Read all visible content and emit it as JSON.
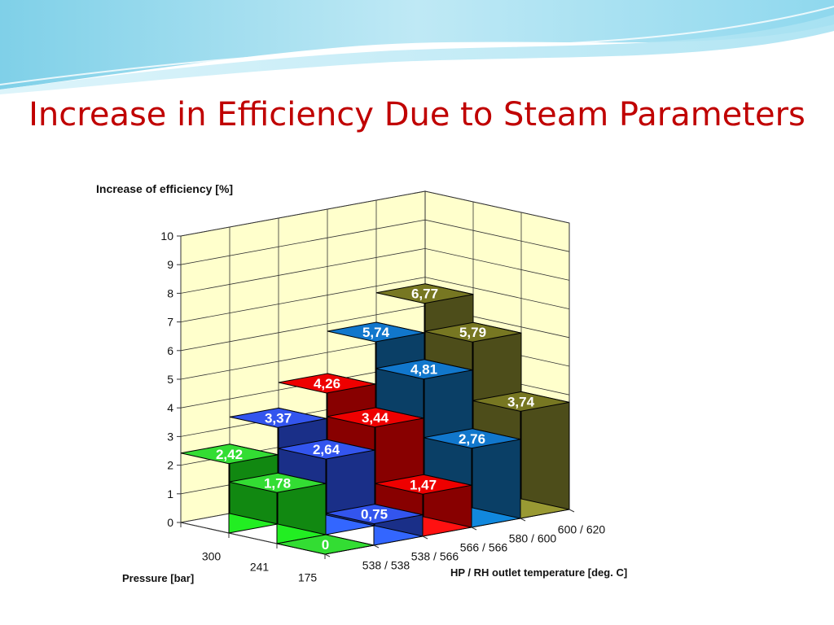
{
  "slide": {
    "title": "Increase in Efficiency Due to Steam Parameters"
  },
  "chart_data": {
    "type": "bar-3d",
    "ylabel": "Increase of efficiency  [%]",
    "zlabel": "Pressure  [bar]",
    "xlabel": "HP / RH outlet temperature  [deg. C]",
    "ylim": [
      0,
      10
    ],
    "yticks": [
      "0",
      "1",
      "2",
      "3",
      "4",
      "5",
      "6",
      "7",
      "8",
      "9",
      "10"
    ],
    "temperatures": [
      "538 / 538",
      "538 / 566",
      "566 / 566",
      "580 / 600",
      "600 / 620"
    ],
    "pressures": [
      "300",
      "241",
      "175"
    ],
    "value_labels": [
      [
        "2,42",
        "3,37",
        "4,26",
        "5,74",
        "6,77"
      ],
      [
        "1,78",
        "2,64",
        "3,44",
        "4,81",
        "5,79"
      ],
      [
        "0",
        "0,75",
        "1,47",
        "2,76",
        "3,74"
      ]
    ],
    "values": [
      [
        2.42,
        3.37,
        4.26,
        5.74,
        6.77
      ],
      [
        1.78,
        2.64,
        3.44,
        4.81,
        5.79
      ],
      [
        0,
        0.75,
        1.47,
        2.76,
        3.74
      ]
    ],
    "colors": [
      {
        "top": "#33dd33",
        "front": "#22ee22",
        "side": "#118811"
      },
      {
        "top": "#3355ee",
        "front": "#3366ff",
        "side": "#1a2f88"
      },
      {
        "top": "#ee0000",
        "front": "#ff1111",
        "side": "#880000"
      },
      {
        "top": "#1177cc",
        "front": "#1188dd",
        "side": "#0a3f66"
      },
      {
        "top": "#777722",
        "front": "#999933",
        "side": "#4d4d1a"
      }
    ],
    "wall_color": "#ffffcc",
    "grid": true
  }
}
